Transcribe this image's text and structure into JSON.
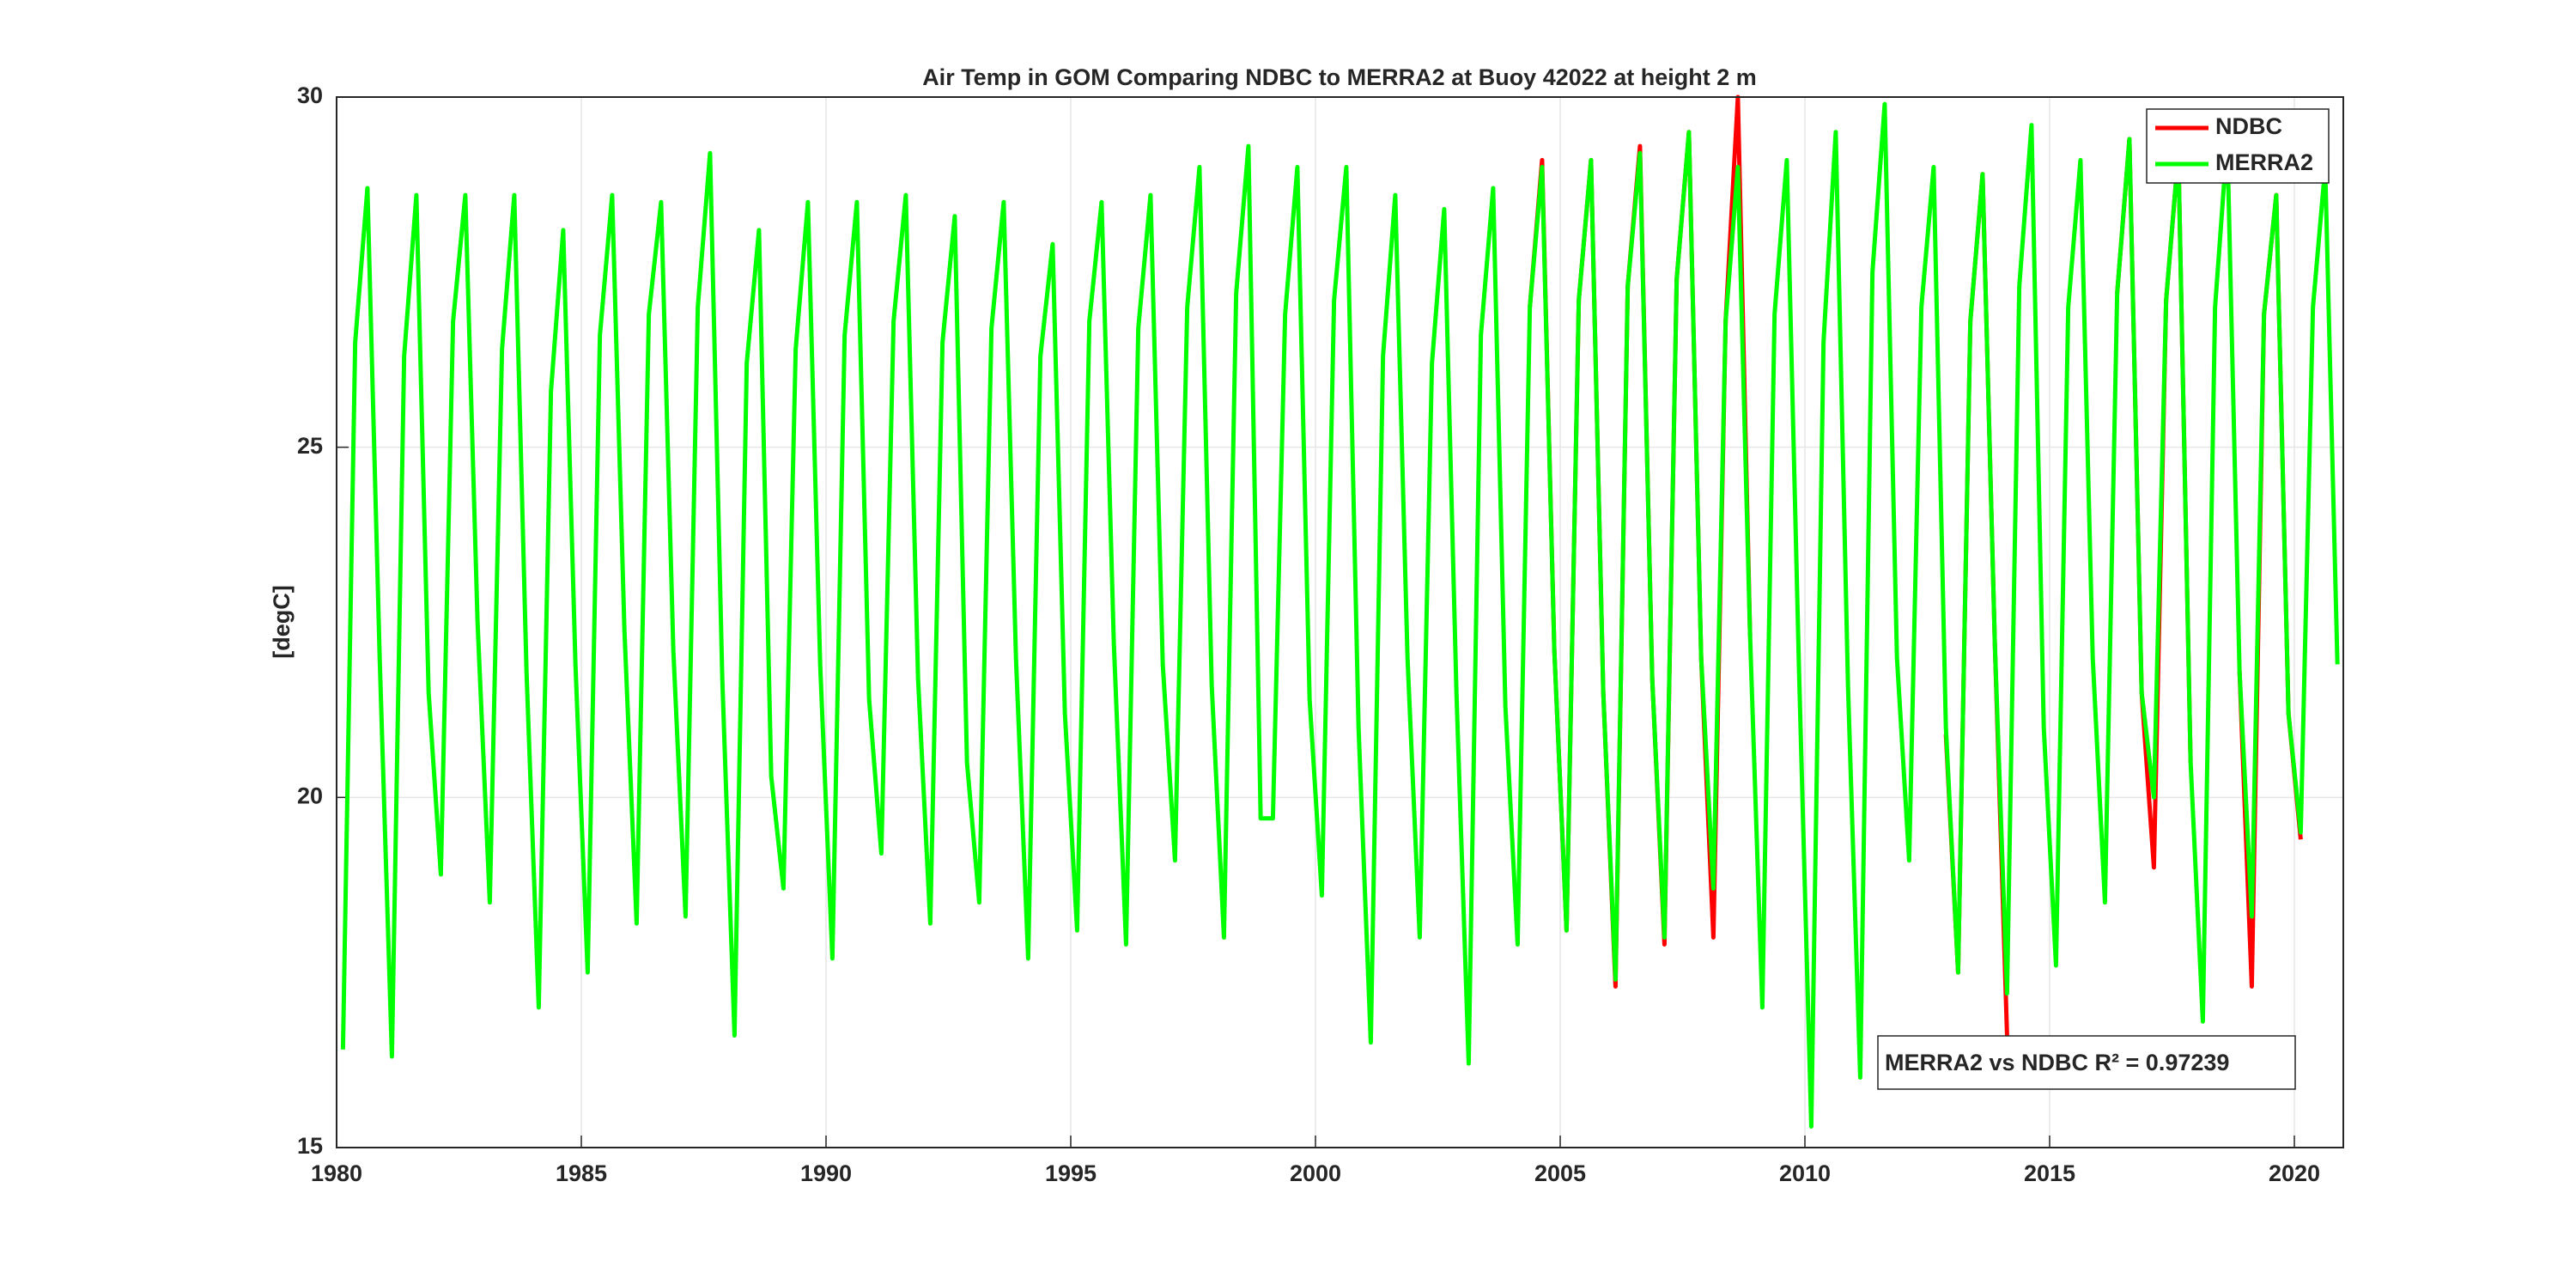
{
  "chart_data": {
    "type": "line",
    "title": "Air Temp in GOM Comparing NDBC to MERRA2 at Buoy  42022  at height  2 m",
    "y_label": "[degC]",
    "annotation": "MERRA2 vs NDBC R² = 0.97239",
    "xlim": [
      1980,
      2021
    ],
    "xticks": [
      1980,
      1985,
      1990,
      1995,
      2000,
      2005,
      2010,
      2015,
      2020
    ],
    "ylim": [
      15,
      30
    ],
    "yticks": [
      15,
      20,
      25,
      30
    ],
    "grid": true,
    "legend": "northeast",
    "x": [
      1980.13,
      1980.38,
      1980.63,
      1980.88,
      1981.13,
      1981.38,
      1981.63,
      1981.88,
      1982.13,
      1982.38,
      1982.63,
      1982.88,
      1983.13,
      1983.38,
      1983.63,
      1983.88,
      1984.13,
      1984.38,
      1984.63,
      1984.88,
      1985.13,
      1985.38,
      1985.63,
      1985.88,
      1986.13,
      1986.38,
      1986.63,
      1986.88,
      1987.13,
      1987.38,
      1987.63,
      1987.88,
      1988.13,
      1988.38,
      1988.63,
      1988.88,
      1989.13,
      1989.38,
      1989.63,
      1989.88,
      1990.13,
      1990.38,
      1990.63,
      1990.88,
      1991.13,
      1991.38,
      1991.63,
      1991.88,
      1992.13,
      1992.38,
      1992.63,
      1992.88,
      1993.13,
      1993.38,
      1993.63,
      1993.88,
      1994.13,
      1994.38,
      1994.63,
      1994.88,
      1995.13,
      1995.38,
      1995.63,
      1995.88,
      1996.13,
      1996.38,
      1996.63,
      1996.88,
      1997.13,
      1997.38,
      1997.63,
      1997.88,
      1998.13,
      1998.38,
      1998.63,
      1998.88,
      1999.13,
      1999.38,
      1999.63,
      1999.88,
      2000.13,
      2000.38,
      2000.63,
      2000.88,
      2001.13,
      2001.38,
      2001.63,
      2001.88,
      2002.13,
      2002.38,
      2002.63,
      2002.88,
      2003.13,
      2003.38,
      2003.63,
      2003.88,
      2004.13,
      2004.38,
      2004.63,
      2004.88,
      2005.13,
      2005.38,
      2005.63,
      2005.88,
      2006.13,
      2006.38,
      2006.63,
      2006.88,
      2007.13,
      2007.38,
      2007.63,
      2007.88,
      2008.13,
      2008.38,
      2008.63,
      2008.88,
      2009.13,
      2009.38,
      2009.63,
      2009.88,
      2010.13,
      2010.38,
      2010.63,
      2010.88,
      2011.13,
      2011.38,
      2011.63,
      2011.88,
      2012.13,
      2012.38,
      2012.63,
      2012.88,
      2013.13,
      2013.38,
      2013.63,
      2013.88,
      2014.13,
      2014.38,
      2014.63,
      2014.88,
      2015.13,
      2015.38,
      2015.63,
      2015.88,
      2016.13,
      2016.38,
      2016.63,
      2016.88,
      2017.13,
      2017.38,
      2017.63,
      2017.88,
      2018.13,
      2018.38,
      2018.63,
      2018.88,
      2019.13,
      2019.38,
      2019.63,
      2019.88,
      2020.13,
      2020.38,
      2020.63,
      2020.88
    ],
    "series": [
      {
        "name": "NDBC",
        "color": "#ff0000",
        "values": [
          null,
          null,
          null,
          null,
          null,
          null,
          null,
          null,
          null,
          null,
          null,
          null,
          null,
          null,
          null,
          null,
          null,
          null,
          null,
          null,
          null,
          null,
          null,
          null,
          null,
          null,
          null,
          null,
          null,
          null,
          null,
          null,
          null,
          null,
          null,
          null,
          null,
          null,
          null,
          null,
          null,
          null,
          null,
          null,
          null,
          null,
          null,
          null,
          null,
          null,
          null,
          null,
          null,
          null,
          null,
          null,
          null,
          null,
          null,
          null,
          null,
          null,
          null,
          null,
          null,
          null,
          null,
          null,
          null,
          null,
          null,
          null,
          null,
          null,
          null,
          null,
          null,
          null,
          null,
          null,
          null,
          null,
          null,
          null,
          null,
          null,
          null,
          null,
          null,
          null,
          null,
          null,
          null,
          null,
          null,
          null,
          null,
          27.0,
          29.1,
          22.1,
          18.1,
          27.1,
          29.1,
          21.5,
          17.3,
          27.3,
          29.3,
          21.7,
          17.9,
          27.4,
          29.5,
          22.0,
          18.0,
          26.8,
          30.0,
          22.3,
          null,
          null,
          null,
          null,
          null,
          null,
          null,
          null,
          null,
          null,
          null,
          null,
          null,
          null,
          null,
          20.9,
          17.5,
          26.8,
          28.9,
          22.2,
          16.6,
          null,
          null,
          null,
          null,
          null,
          null,
          null,
          null,
          27.2,
          29.4,
          21.5,
          19.0,
          27.1,
          29.2,
          20.5,
          null,
          null,
          null,
          21.8,
          17.3,
          26.9,
          28.6,
          21.2,
          19.4,
          null,
          null,
          null
        ]
      },
      {
        "name": "MERRA2",
        "color": "#00ff00",
        "values": [
          16.4,
          26.5,
          28.7,
          22.0,
          16.3,
          26.3,
          28.6,
          21.5,
          18.9,
          26.8,
          28.6,
          22.5,
          18.5,
          26.4,
          28.6,
          21.8,
          17.0,
          25.8,
          28.1,
          21.9,
          17.5,
          26.6,
          28.6,
          22.4,
          18.2,
          26.9,
          28.5,
          22.1,
          18.3,
          27.0,
          29.2,
          21.7,
          16.6,
          26.2,
          28.1,
          20.3,
          18.7,
          26.4,
          28.5,
          21.9,
          17.7,
          26.6,
          28.5,
          21.4,
          19.2,
          26.8,
          28.6,
          21.7,
          18.2,
          26.5,
          28.3,
          20.5,
          18.5,
          26.7,
          28.5,
          22.0,
          17.7,
          26.3,
          27.9,
          21.2,
          18.1,
          26.8,
          28.5,
          22.2,
          17.9,
          26.7,
          28.6,
          21.9,
          19.1,
          27.0,
          29.0,
          21.6,
          18.0,
          27.2,
          29.3,
          19.7,
          19.7,
          26.9,
          29.0,
          21.4,
          18.6,
          27.1,
          29.0,
          21.0,
          16.5,
          26.3,
          28.6,
          22.0,
          18.0,
          26.2,
          28.4,
          21.5,
          16.2,
          26.6,
          28.7,
          21.3,
          17.9,
          27.0,
          29.0,
          22.1,
          18.1,
          27.1,
          29.1,
          21.5,
          17.4,
          27.3,
          29.2,
          21.7,
          18.0,
          27.4,
          29.5,
          22.0,
          18.7,
          26.8,
          29.0,
          22.3,
          17.0,
          26.9,
          29.1,
          21.8,
          15.3,
          26.5,
          29.5,
          21.6,
          16.0,
          27.5,
          29.9,
          22.0,
          19.1,
          27.0,
          29.0,
          21.0,
          17.5,
          26.8,
          28.9,
          22.2,
          17.2,
          27.3,
          29.6,
          21.0,
          17.6,
          27.0,
          29.1,
          22.0,
          18.5,
          27.2,
          29.4,
          21.5,
          20.0,
          27.1,
          29.2,
          20.5,
          16.8,
          27.0,
          29.4,
          21.8,
          18.3,
          26.9,
          28.6,
          21.2,
          19.5,
          27.0,
          29.0,
          21.9
        ]
      }
    ]
  }
}
